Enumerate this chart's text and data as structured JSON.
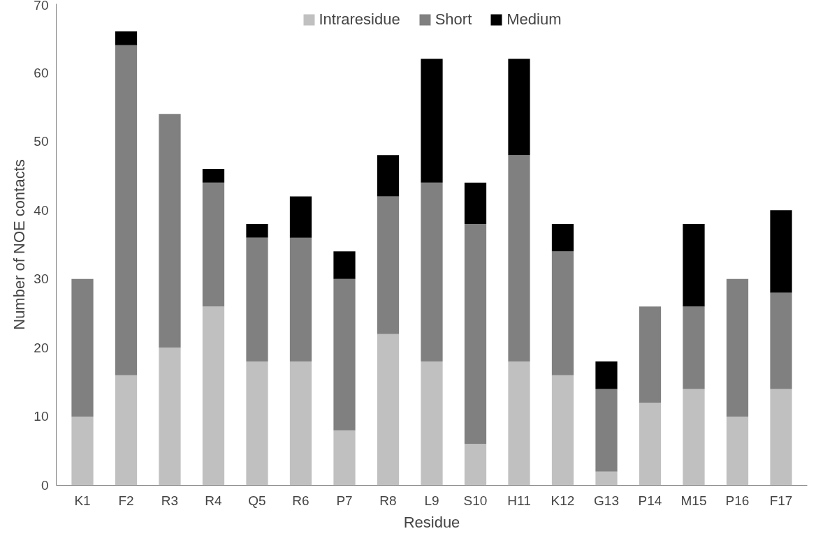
{
  "chart_data": {
    "type": "bar",
    "stacked": true,
    "xlabel": "Residue",
    "ylabel": "Number of NOE contacts",
    "categories": [
      "K1",
      "F2",
      "R3",
      "R4",
      "Q5",
      "R6",
      "P7",
      "R8",
      "L9",
      "S10",
      "H11",
      "K12",
      "G13",
      "P14",
      "M15",
      "P16",
      "F17"
    ],
    "series": [
      {
        "name": "Intraresidue",
        "color": "#c0c0c0",
        "values": [
          10,
          16,
          20,
          26,
          18,
          18,
          8,
          22,
          18,
          6,
          18,
          16,
          2,
          12,
          14,
          10,
          14
        ]
      },
      {
        "name": "Short",
        "color": "#808080",
        "values": [
          20,
          48,
          34,
          18,
          18,
          18,
          22,
          20,
          26,
          32,
          30,
          18,
          12,
          14,
          12,
          20,
          14
        ]
      },
      {
        "name": "Medium",
        "color": "#000000",
        "values": [
          0,
          2,
          0,
          2,
          2,
          6,
          4,
          6,
          18,
          6,
          14,
          4,
          4,
          0,
          12,
          0,
          12
        ]
      }
    ],
    "ylim": [
      0,
      70
    ],
    "yticks": [
      0,
      10,
      20,
      30,
      40,
      50,
      60,
      70
    ],
    "grid": false,
    "legend": "top"
  }
}
